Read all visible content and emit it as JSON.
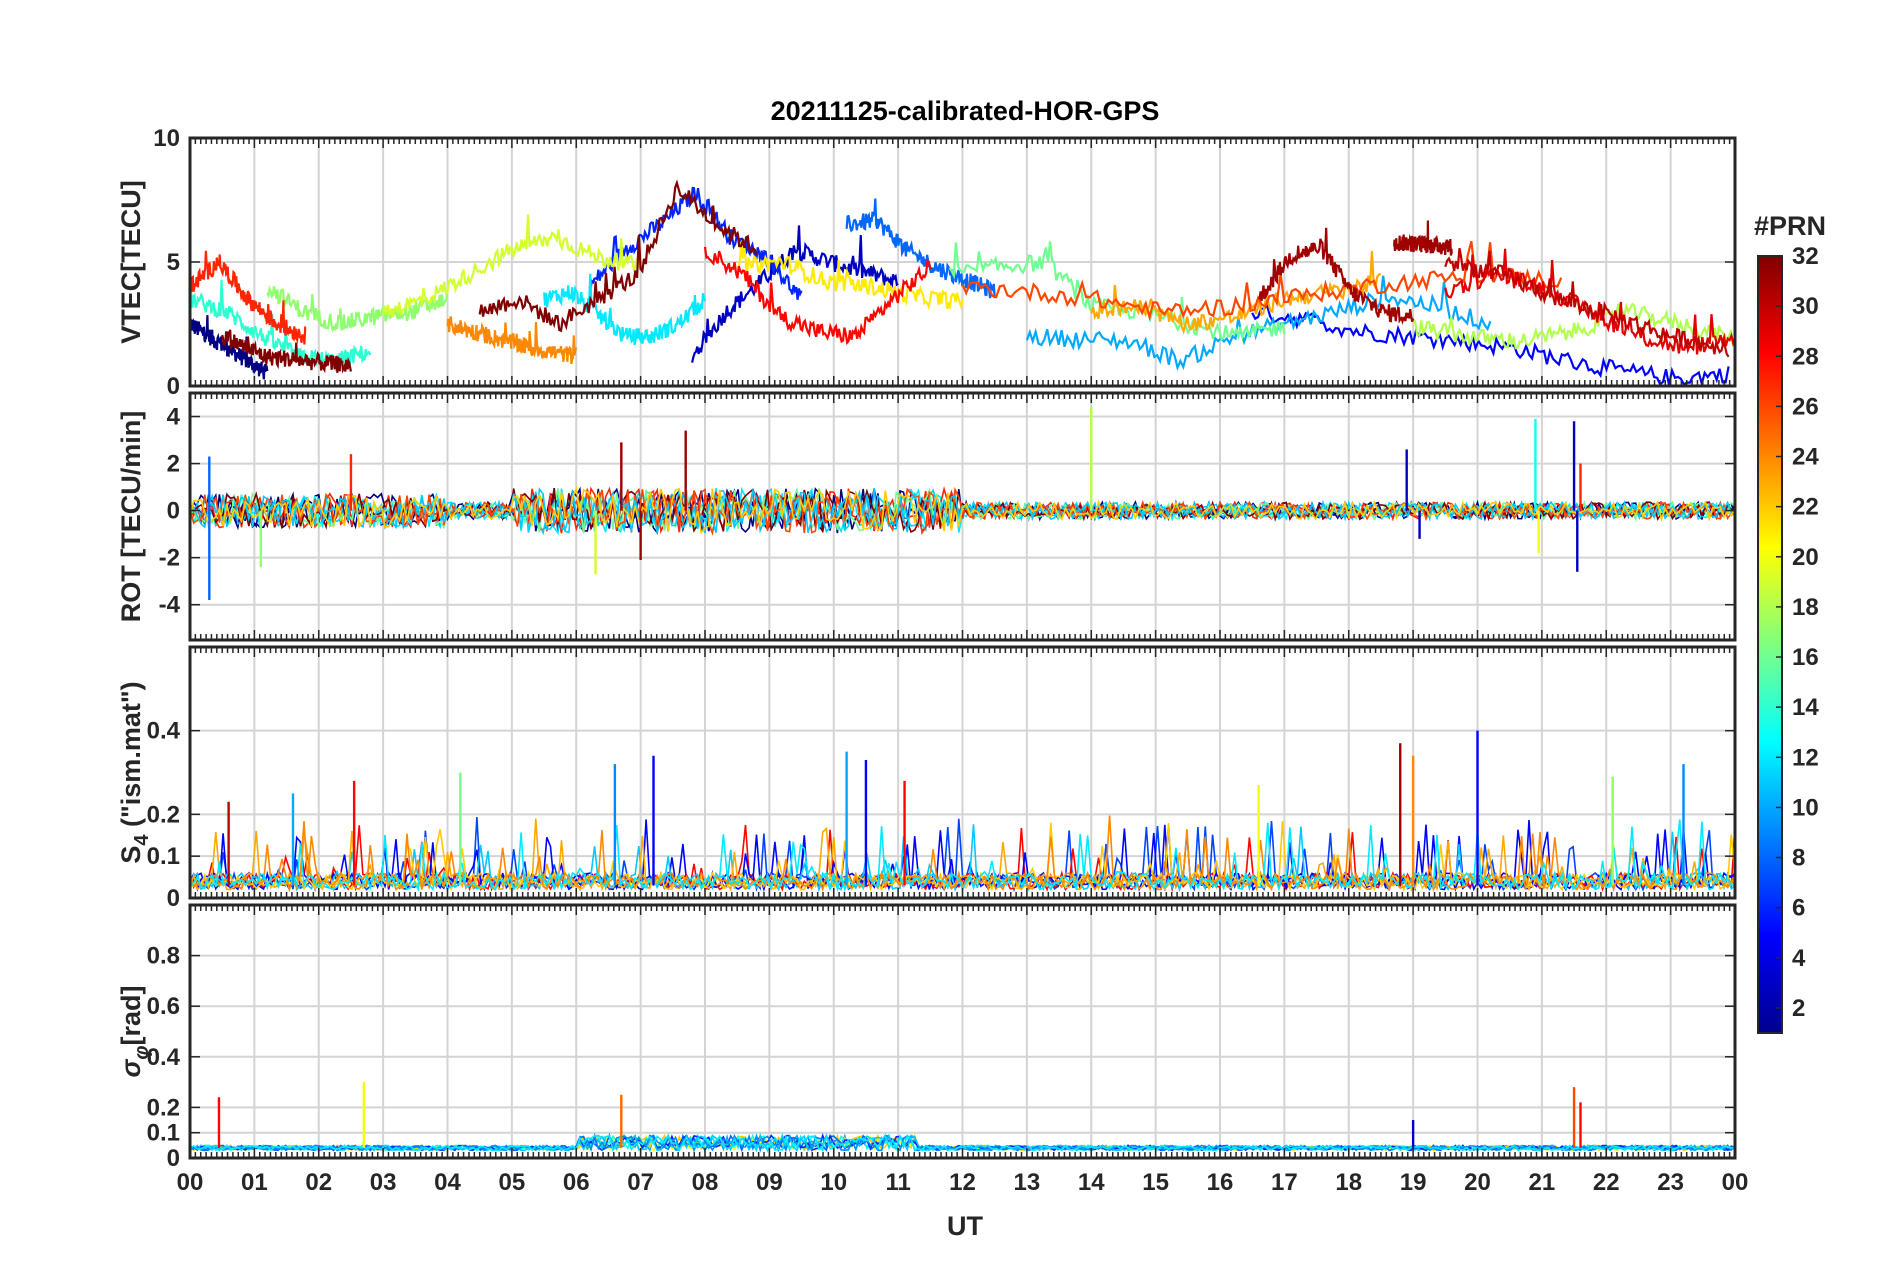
{
  "chart_data": {
    "type": "line",
    "title": "20211125-calibrated-HOR-GPS",
    "xlabel": "UT",
    "x_ticks": [
      "00",
      "01",
      "02",
      "03",
      "04",
      "05",
      "06",
      "07",
      "08",
      "09",
      "10",
      "11",
      "12",
      "13",
      "14",
      "15",
      "16",
      "17",
      "18",
      "19",
      "20",
      "21",
      "22",
      "23",
      "00"
    ],
    "xlim": [
      0,
      24
    ],
    "colorbar": {
      "label": "#PRN",
      "colormap": "jet",
      "range": [
        1,
        32
      ],
      "ticks": [
        2,
        4,
        6,
        8,
        10,
        12,
        14,
        16,
        18,
        20,
        22,
        24,
        26,
        28,
        30,
        32
      ]
    },
    "panels": [
      {
        "id": "vtec",
        "ylabel": "VTEC[TECU]",
        "ylim": [
          0,
          10
        ],
        "y_ticks": [
          0,
          5,
          10
        ],
        "y_tick_labels": [
          "0",
          "5",
          "10"
        ],
        "series": [
          {
            "prn": 1,
            "t_range": [
              0.0,
              1.2
            ],
            "values": [
              2.5,
              2.0,
              1.5,
              1.0,
              0.5
            ]
          },
          {
            "prn": 3,
            "t_range": [
              7.8,
              11.0
            ],
            "values": [
              1.2,
              3.0,
              4.2,
              5.5,
              5.0,
              4.6,
              4.2
            ]
          },
          {
            "prn": 5,
            "t_range": [
              16.5,
              23.9
            ],
            "values": [
              3.0,
              2.7,
              2.2,
              2.0,
              1.8,
              1.5,
              1.0,
              0.6,
              0.3,
              0.5
            ]
          },
          {
            "prn": 6,
            "t_range": [
              6.2,
              9.5
            ],
            "values": [
              4.0,
              5.5,
              6.5,
              7.8,
              6.0,
              5.2,
              3.5
            ]
          },
          {
            "prn": 8,
            "t_range": [
              10.2,
              12.5
            ],
            "values": [
              6.5,
              6.7,
              5.5,
              4.8,
              4.3,
              3.8
            ]
          },
          {
            "prn": 10,
            "t_range": [
              13.0,
              20.2
            ],
            "values": [
              2.0,
              1.9,
              1.8,
              1.0,
              2.0,
              2.5,
              3.0,
              3.6,
              3.2,
              2.5
            ]
          },
          {
            "prn": 12,
            "t_range": [
              5.5,
              8.0
            ],
            "values": [
              3.5,
              3.8,
              2.9,
              2.0,
              2.0,
              2.5,
              3.5
            ]
          },
          {
            "prn": 14,
            "t_range": [
              0.0,
              2.8
            ],
            "values": [
              3.5,
              3.0,
              2.0,
              1.2,
              1.0,
              1.4
            ]
          },
          {
            "prn": 16,
            "t_range": [
              11.8,
              17.0
            ],
            "values": [
              4.5,
              4.8,
              5.0,
              3.2,
              3.0,
              2.5,
              2.0,
              2.4
            ]
          },
          {
            "prn": 17,
            "t_range": [
              1.2,
              4.0
            ],
            "values": [
              4.0,
              3.0,
              2.5,
              2.8,
              3.0,
              3.5
            ]
          },
          {
            "prn": 18,
            "t_range": [
              19.0,
              24.0
            ],
            "values": [
              2.4,
              2.0,
              1.8,
              2.2,
              3.0,
              2.5,
              1.9
            ]
          },
          {
            "prn": 19,
            "t_range": [
              3.0,
              7.0
            ],
            "values": [
              3.0,
              3.5,
              4.5,
              5.5,
              6.0,
              5.2,
              4.8
            ]
          },
          {
            "prn": 21,
            "t_range": [
              8.5,
              12.0
            ],
            "values": [
              4.8,
              5.0,
              4.2,
              4.0,
              3.6,
              3.4
            ]
          },
          {
            "prn": 23,
            "t_range": [
              14.0,
              18.5
            ],
            "values": [
              3.0,
              3.2,
              2.5,
              2.8,
              3.5,
              3.8,
              4.2
            ]
          },
          {
            "prn": 24,
            "t_range": [
              4.0,
              6.0
            ],
            "values": [
              2.5,
              2.0,
              1.5,
              1.2
            ]
          },
          {
            "prn": 26,
            "t_range": [
              12.0,
              21.3
            ],
            "values": [
              4.0,
              3.8,
              3.5,
              3.0,
              3.2,
              3.6,
              4.0,
              4.3,
              4.5,
              4.2
            ]
          },
          {
            "prn": 27,
            "t_range": [
              0.0,
              1.8
            ],
            "values": [
              4.0,
              5.0,
              3.5,
              2.5,
              2.0
            ]
          },
          {
            "prn": 28,
            "t_range": [
              8.0,
              11.5
            ],
            "values": [
              5.5,
              4.5,
              2.8,
              2.2,
              2.0,
              3.5,
              4.8
            ]
          },
          {
            "prn": 29,
            "t_range": [
              19.5,
              24.0
            ],
            "values": [
              3.8,
              4.5,
              4.0,
              3.0,
              2.0,
              1.5,
              2.0
            ]
          },
          {
            "prn": 31,
            "t_range": [
              16.6,
              19.0
            ],
            "values": [
              3.5,
              5.2,
              5.6,
              3.8,
              3.0,
              2.8
            ]
          },
          {
            "prn": 31,
            "t_range": [
              18.7,
              19.6
            ],
            "values": [
              5.8,
              5.7,
              5.6
            ]
          },
          {
            "prn": 32,
            "t_range": [
              4.5,
              8.8
            ],
            "values": [
              3.0,
              3.5,
              2.5,
              3.5,
              4.5,
              8.0,
              6.5,
              5.5
            ]
          },
          {
            "prn": 32,
            "t_range": [
              0.5,
              2.5
            ],
            "values": [
              2.0,
              1.2,
              1.0,
              0.8
            ]
          },
          {
            "prn": 30,
            "t_range": [
              19.5,
              23.9
            ],
            "values": [
              5.0,
              4.5,
              3.5,
              2.8,
              2.0,
              1.5
            ]
          }
        ]
      },
      {
        "id": "rot",
        "ylabel": "ROT [TECU/min]",
        "ylim": [
          -5.5,
          5
        ],
        "y_ticks": [
          -4,
          -2,
          0,
          2,
          4
        ],
        "y_tick_labels": [
          "-4",
          "-2",
          "0",
          "2",
          "4"
        ],
        "spikes": [
          {
            "t": 0.3,
            "value": -3.8,
            "prn": 8
          },
          {
            "t": 0.3,
            "value": 2.3,
            "prn": 8
          },
          {
            "t": 1.1,
            "value": -2.4,
            "prn": 17
          },
          {
            "t": 2.5,
            "value": 2.4,
            "prn": 27
          },
          {
            "t": 6.7,
            "value": 2.9,
            "prn": 31
          },
          {
            "t": 7.7,
            "value": 3.4,
            "prn": 31
          },
          {
            "t": 7.0,
            "value": -2.1,
            "prn": 31
          },
          {
            "t": 6.3,
            "value": -2.7,
            "prn": 19
          },
          {
            "t": 14.0,
            "value": 4.4,
            "prn": 18
          },
          {
            "t": 18.9,
            "value": 2.6,
            "prn": 3
          },
          {
            "t": 19.1,
            "value": -1.2,
            "prn": 3
          },
          {
            "t": 20.9,
            "value": 3.9,
            "prn": 13
          },
          {
            "t": 20.95,
            "value": -1.8,
            "prn": 20
          },
          {
            "t": 21.5,
            "value": 3.8,
            "prn": 3
          },
          {
            "t": 21.55,
            "value": -2.6,
            "prn": 3
          },
          {
            "t": 21.6,
            "value": 2.0,
            "prn": 27
          }
        ]
      },
      {
        "id": "s4",
        "ylabel": "S4 (\"ism.mat\")",
        "ylim": [
          0,
          0.6
        ],
        "y_ticks": [
          0,
          0.1,
          0.2,
          0.4
        ],
        "y_tick_labels": [
          "0",
          "0.1",
          "0.2",
          "0.4"
        ],
        "spikes": [
          {
            "t": 2.55,
            "value": 0.28,
            "prn": 28
          },
          {
            "t": 6.6,
            "value": 0.32,
            "prn": 9
          },
          {
            "t": 7.2,
            "value": 0.34,
            "prn": 5
          },
          {
            "t": 10.2,
            "value": 0.35,
            "prn": 10
          },
          {
            "t": 10.5,
            "value": 0.33,
            "prn": 5
          },
          {
            "t": 11.1,
            "value": 0.28,
            "prn": 28
          },
          {
            "t": 18.8,
            "value": 0.37,
            "prn": 31
          },
          {
            "t": 19.0,
            "value": 0.34,
            "prn": 24
          },
          {
            "t": 20.0,
            "value": 0.4,
            "prn": 5
          },
          {
            "t": 22.1,
            "value": 0.29,
            "prn": 17
          },
          {
            "t": 23.2,
            "value": 0.32,
            "prn": 9
          },
          {
            "t": 4.2,
            "value": 0.3,
            "prn": 16
          },
          {
            "t": 1.6,
            "value": 0.25,
            "prn": 10
          },
          {
            "t": 0.6,
            "value": 0.23,
            "prn": 30
          },
          {
            "t": 16.6,
            "value": 0.27,
            "prn": 20
          }
        ]
      },
      {
        "id": "sigma_phi",
        "ylabel": "σφ[rad]",
        "ylim": [
          0,
          1
        ],
        "y_ticks": [
          0,
          0.1,
          0.2,
          0.4,
          0.6,
          0.8
        ],
        "y_tick_labels": [
          "0",
          "0.1",
          "0.2",
          "0.4",
          "0.6",
          "0.8"
        ],
        "spikes": [
          {
            "t": 0.45,
            "value": 0.24,
            "prn": 28
          },
          {
            "t": 2.7,
            "value": 0.3,
            "prn": 20
          },
          {
            "t": 6.7,
            "value": 0.25,
            "prn": 25
          },
          {
            "t": 19.0,
            "value": 0.15,
            "prn": 3
          },
          {
            "t": 21.5,
            "value": 0.28,
            "prn": 26
          },
          {
            "t": 21.6,
            "value": 0.22,
            "prn": 28
          }
        ]
      }
    ]
  }
}
